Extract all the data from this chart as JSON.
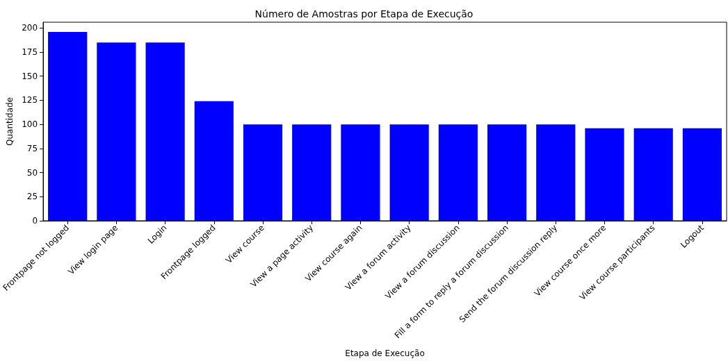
{
  "chart_data": {
    "type": "bar",
    "title": "Número de Amostras por Etapa de Execução",
    "xlabel": "Etapa de Execução",
    "ylabel": "Quantidade",
    "categories": [
      "Frontpage not logged",
      "View login page",
      "Login",
      "Frontpage logged",
      "View course",
      "View a page activity",
      "View course again",
      "View a forum activity",
      "View a forum discussion",
      "Fill a form to reply a forum discussion",
      "Send the forum discussion reply",
      "View course once more",
      "View course participants",
      "Logout"
    ],
    "values": [
      196,
      185,
      185,
      124,
      100,
      100,
      100,
      100,
      100,
      100,
      100,
      96,
      96,
      96
    ],
    "color": "#0000ff",
    "ylim": [
      0,
      206
    ],
    "yticks": [
      0,
      25,
      50,
      75,
      100,
      125,
      150,
      175,
      200
    ],
    "grid": false
  }
}
